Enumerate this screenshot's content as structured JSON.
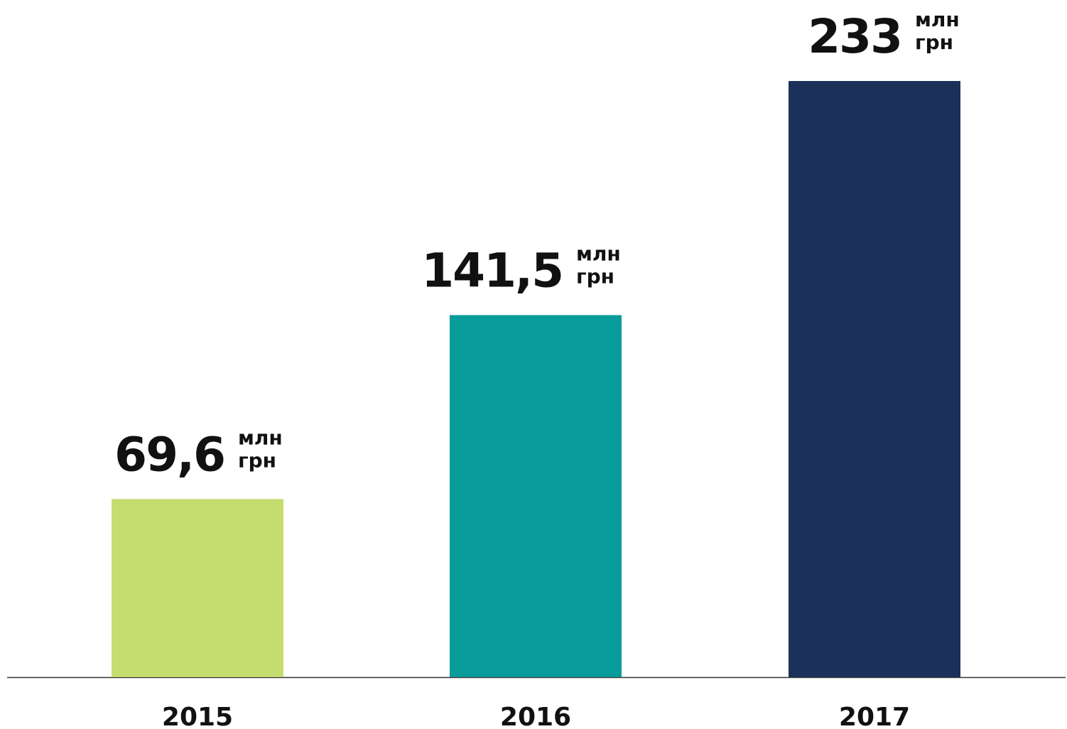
{
  "chart_data": {
    "type": "bar",
    "categories": [
      "2015",
      "2016",
      "2017"
    ],
    "values": [
      69.6,
      141.5,
      233
    ],
    "value_labels": [
      "69,6",
      "141,5",
      "233"
    ],
    "value_unit_lines": [
      "млн",
      "грн"
    ],
    "colors": [
      "#c5dc6f",
      "#079c9a",
      "#1b315a"
    ]
  }
}
